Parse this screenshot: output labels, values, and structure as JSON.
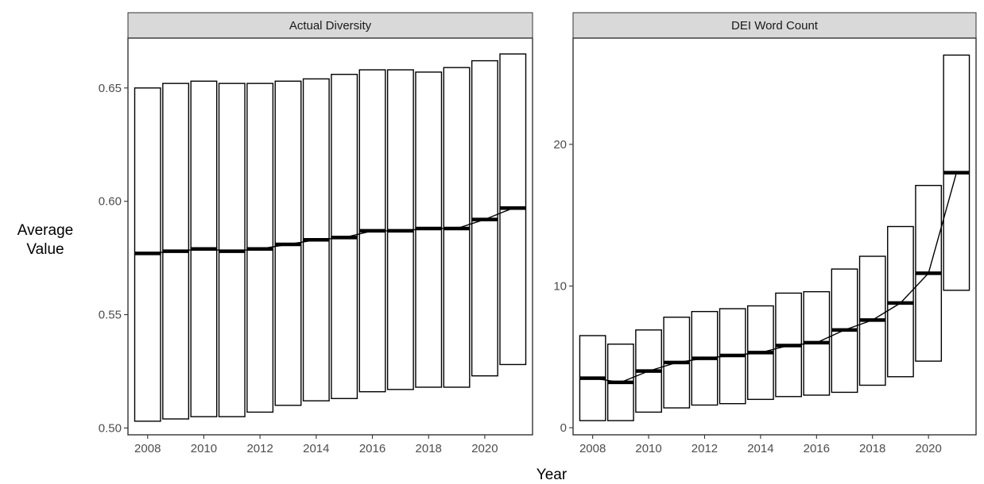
{
  "chart_data": {
    "type": "box",
    "xlabel": "Year",
    "ylabel": "Average\nValue",
    "years": [
      2008,
      2009,
      2010,
      2011,
      2012,
      2013,
      2014,
      2015,
      2016,
      2017,
      2018,
      2019,
      2020,
      2021
    ],
    "x_ticks": [
      2008,
      2010,
      2012,
      2014,
      2016,
      2018,
      2020
    ],
    "panels": [
      {
        "title": "Actual Diversity",
        "ylim": [
          0.497,
          0.672
        ],
        "y_ticks": [
          0.5,
          0.55,
          0.6,
          0.65
        ],
        "y_tick_labels": [
          "0.50",
          "0.55",
          "0.60",
          "0.65"
        ],
        "low": [
          0.503,
          0.504,
          0.505,
          0.505,
          0.507,
          0.51,
          0.512,
          0.513,
          0.516,
          0.517,
          0.518,
          0.518,
          0.523,
          0.528
        ],
        "high": [
          0.65,
          0.652,
          0.653,
          0.652,
          0.652,
          0.653,
          0.654,
          0.656,
          0.658,
          0.658,
          0.657,
          0.659,
          0.662,
          0.665
        ],
        "median": [
          0.577,
          0.578,
          0.579,
          0.578,
          0.579,
          0.581,
          0.583,
          0.584,
          0.587,
          0.587,
          0.588,
          0.588,
          0.592,
          0.597
        ]
      },
      {
        "title": "DEI Word Count",
        "ylim": [
          -0.5,
          27.5
        ],
        "y_ticks": [
          0,
          10,
          20
        ],
        "y_tick_labels": [
          "0",
          "10",
          "20"
        ],
        "low": [
          0.5,
          0.5,
          1.1,
          1.4,
          1.6,
          1.7,
          2.0,
          2.2,
          2.3,
          2.5,
          3.0,
          3.6,
          4.7,
          9.7
        ],
        "high": [
          6.5,
          5.9,
          6.9,
          7.8,
          8.2,
          8.4,
          8.6,
          9.5,
          9.6,
          11.2,
          12.1,
          14.2,
          17.1,
          26.3
        ],
        "median": [
          3.5,
          3.2,
          4.0,
          4.6,
          4.9,
          5.1,
          5.3,
          5.8,
          6.0,
          6.9,
          7.6,
          8.8,
          10.9,
          18.0
        ]
      }
    ]
  }
}
